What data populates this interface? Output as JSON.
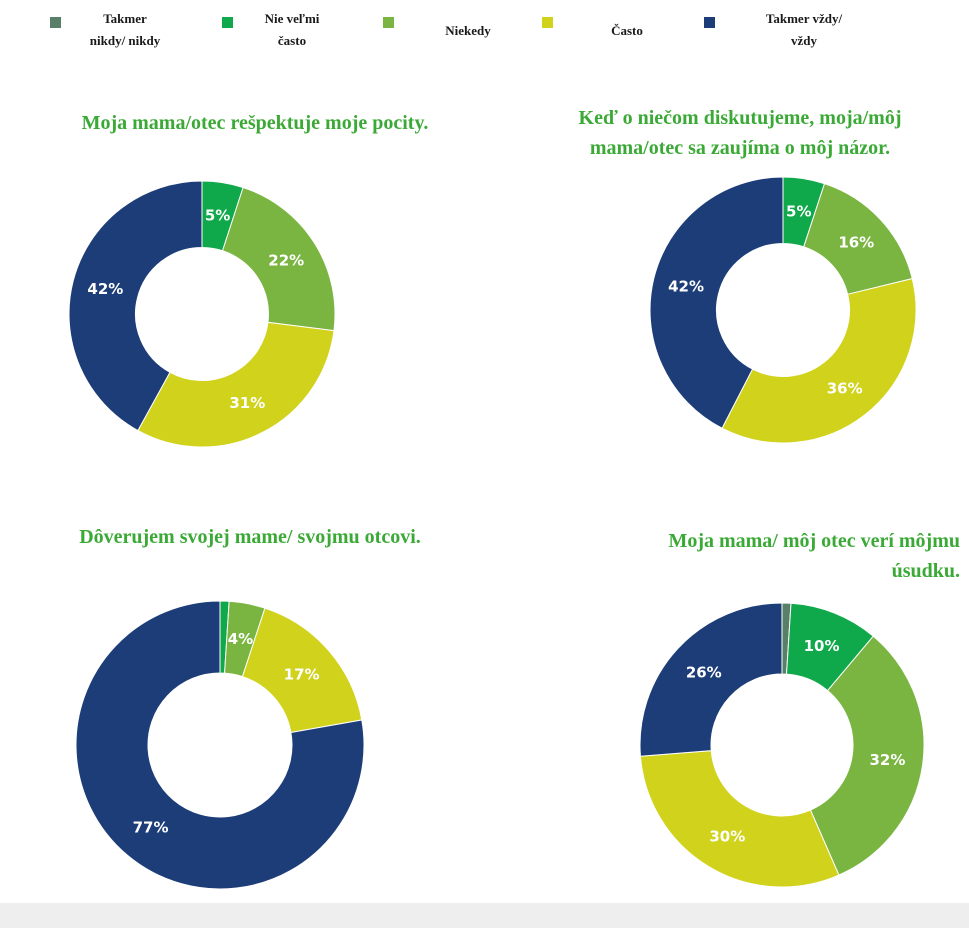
{
  "legend": [
    {
      "label": "Takmer\nnikdy/ nikdy",
      "color": "#5a7f68"
    },
    {
      "label": "Nie veľmi\nčasto",
      "color": "#0fa84a"
    },
    {
      "label": "Niekedy",
      "color": "#7ab542"
    },
    {
      "label": "Často",
      "color": "#d0d21c"
    },
    {
      "label": "Takmer vždy/\nvždy",
      "color": "#1d3d78"
    }
  ],
  "chart_data": [
    {
      "type": "pie",
      "title": "Moja mama/otec rešpektuje moje pocity.",
      "categories": [
        "Takmer nikdy/ nikdy",
        "Nie veľmi často",
        "Niekedy",
        "Často",
        "Takmer vždy/ vždy"
      ],
      "values": [
        0,
        5,
        22,
        31,
        42
      ],
      "labels": [
        "",
        "5%",
        "22%",
        "31%",
        "42%"
      ]
    },
    {
      "type": "pie",
      "title": "Keď o niečom diskutujeme, moja/môj\nmama/otec sa zaujíma o môj názor.",
      "categories": [
        "Takmer nikdy/ nikdy",
        "Nie veľmi často",
        "Niekedy",
        "Často",
        "Takmer vždy/ vždy"
      ],
      "values": [
        0,
        5,
        16,
        36,
        42
      ],
      "labels": [
        "",
        "5%",
        "16%",
        "36%",
        "42%"
      ]
    },
    {
      "type": "pie",
      "title": "Dôverujem svojej mame/ svojmu otcovi.",
      "categories": [
        "Takmer nikdy/ nikdy",
        "Nie veľmi často",
        "Niekedy",
        "Často",
        "Takmer vždy/ vždy"
      ],
      "values": [
        0,
        1,
        4,
        17,
        77
      ],
      "labels": [
        "",
        "",
        "4%",
        "17%",
        "77%"
      ]
    },
    {
      "type": "pie",
      "title": "Moja mama/ môj otec verí môjmu\núsudku.",
      "categories": [
        "Takmer nikdy/ nikdy",
        "Nie veľmi často",
        "Niekedy",
        "Často",
        "Takmer vždy/ vždy"
      ],
      "values": [
        1,
        10,
        32,
        30,
        26
      ],
      "labels": [
        "",
        "10%",
        "32%",
        "30%",
        "26%"
      ]
    }
  ]
}
